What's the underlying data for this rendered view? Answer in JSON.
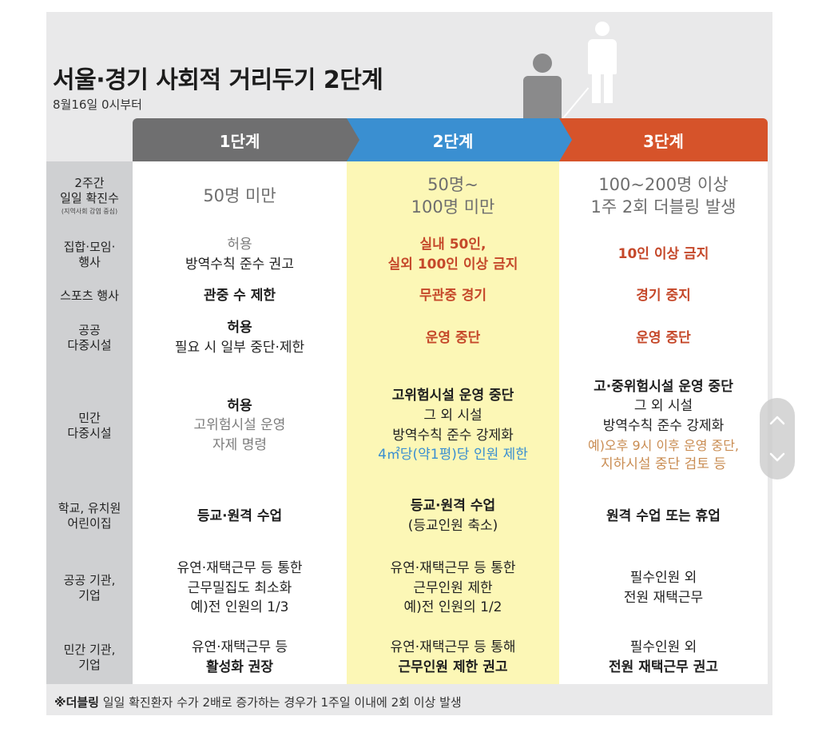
{
  "title": "서울·경기 사회적 거리두기 2단계",
  "subtitle": "8월16일 0시부터",
  "stages": [
    "1단계",
    "2단계",
    "3단계"
  ],
  "colors": {
    "stage1": "#6f6f70",
    "stage2": "#3a8fd1",
    "stage3": "#d6532a",
    "highlight": "#fcf7b6",
    "label_bg": "#cfd0d2"
  },
  "rows": [
    {
      "label": [
        "2주간",
        "일일 확진수"
      ],
      "label_note": "(지역사회 감염 중심)",
      "c1": [
        "50명 미만"
      ],
      "c2": [
        "50명~",
        "100명 미만"
      ],
      "c3": [
        "100~200명 이상",
        "1주 2회 더블링 발생"
      ]
    },
    {
      "label": [
        "집합·모임·",
        "행사"
      ],
      "c1": [
        "허용",
        "방역수칙 준수 권고"
      ],
      "c2": [
        "실내 50인,",
        "실외 100인 이상 금지"
      ],
      "c3": [
        "10인 이상 금지"
      ]
    },
    {
      "label": [
        "스포츠 행사"
      ],
      "c1": [
        "관중 수 제한"
      ],
      "c2": [
        "무관중 경기"
      ],
      "c3": [
        "경기 중지"
      ]
    },
    {
      "label": [
        "공공",
        "다중시설"
      ],
      "c1": [
        "허용",
        "필요 시 일부 중단·제한"
      ],
      "c2": [
        "운영 중단"
      ],
      "c3": [
        "운영 중단"
      ]
    },
    {
      "label": [
        "민간",
        "다중시설"
      ],
      "c1": [
        "허용",
        "고위험시설 운영",
        "자제 명령"
      ],
      "c2": [
        "고위험시설 운영 중단",
        "그 외 시설",
        "방역수칙 준수 강제화",
        "4㎡당(약1평)당 인원 제한"
      ],
      "c3": [
        "고·중위험시설 운영 중단",
        "그 외 시설",
        "방역수칙 준수 강제화",
        "예)오후 9시 이후 운영 중단,",
        "지하시설 중단 검토 등"
      ]
    },
    {
      "label": [
        "학교, 유치원",
        "어린이집"
      ],
      "c1": [
        "등교·원격 수업"
      ],
      "c2": [
        "등교·원격 수업",
        "(등교인원 축소)"
      ],
      "c3": [
        "원격 수업 또는 휴업"
      ]
    },
    {
      "label": [
        "공공 기관,",
        "기업"
      ],
      "c1": [
        "유연·재택근무 등 통한",
        "근무밀집도 최소화",
        "예)전 인원의 1/3"
      ],
      "c2": [
        "유연·재택근무 등 통한",
        "근무인원 제한",
        "예)전 인원의 1/2"
      ],
      "c3": [
        "필수인원 외",
        "전원 재택근무"
      ]
    },
    {
      "label": [
        "민간 기관,",
        "기업"
      ],
      "c1": [
        "유연·재택근무 등",
        "활성화 권장"
      ],
      "c2": [
        "유연·재택근무 등 통해",
        "근무인원 제한 권고"
      ],
      "c3": [
        "필수인원 외",
        "전원 재택근무 권고"
      ]
    }
  ],
  "footnote": {
    "mark": "※더블링",
    "text": " 일일 확진환자 수가 2배로 증가하는 경우가 1주일 이내에 2회 이상 발생"
  },
  "scroll": {
    "up_icon": "chevron-up-icon",
    "down_icon": "chevron-down-icon"
  }
}
